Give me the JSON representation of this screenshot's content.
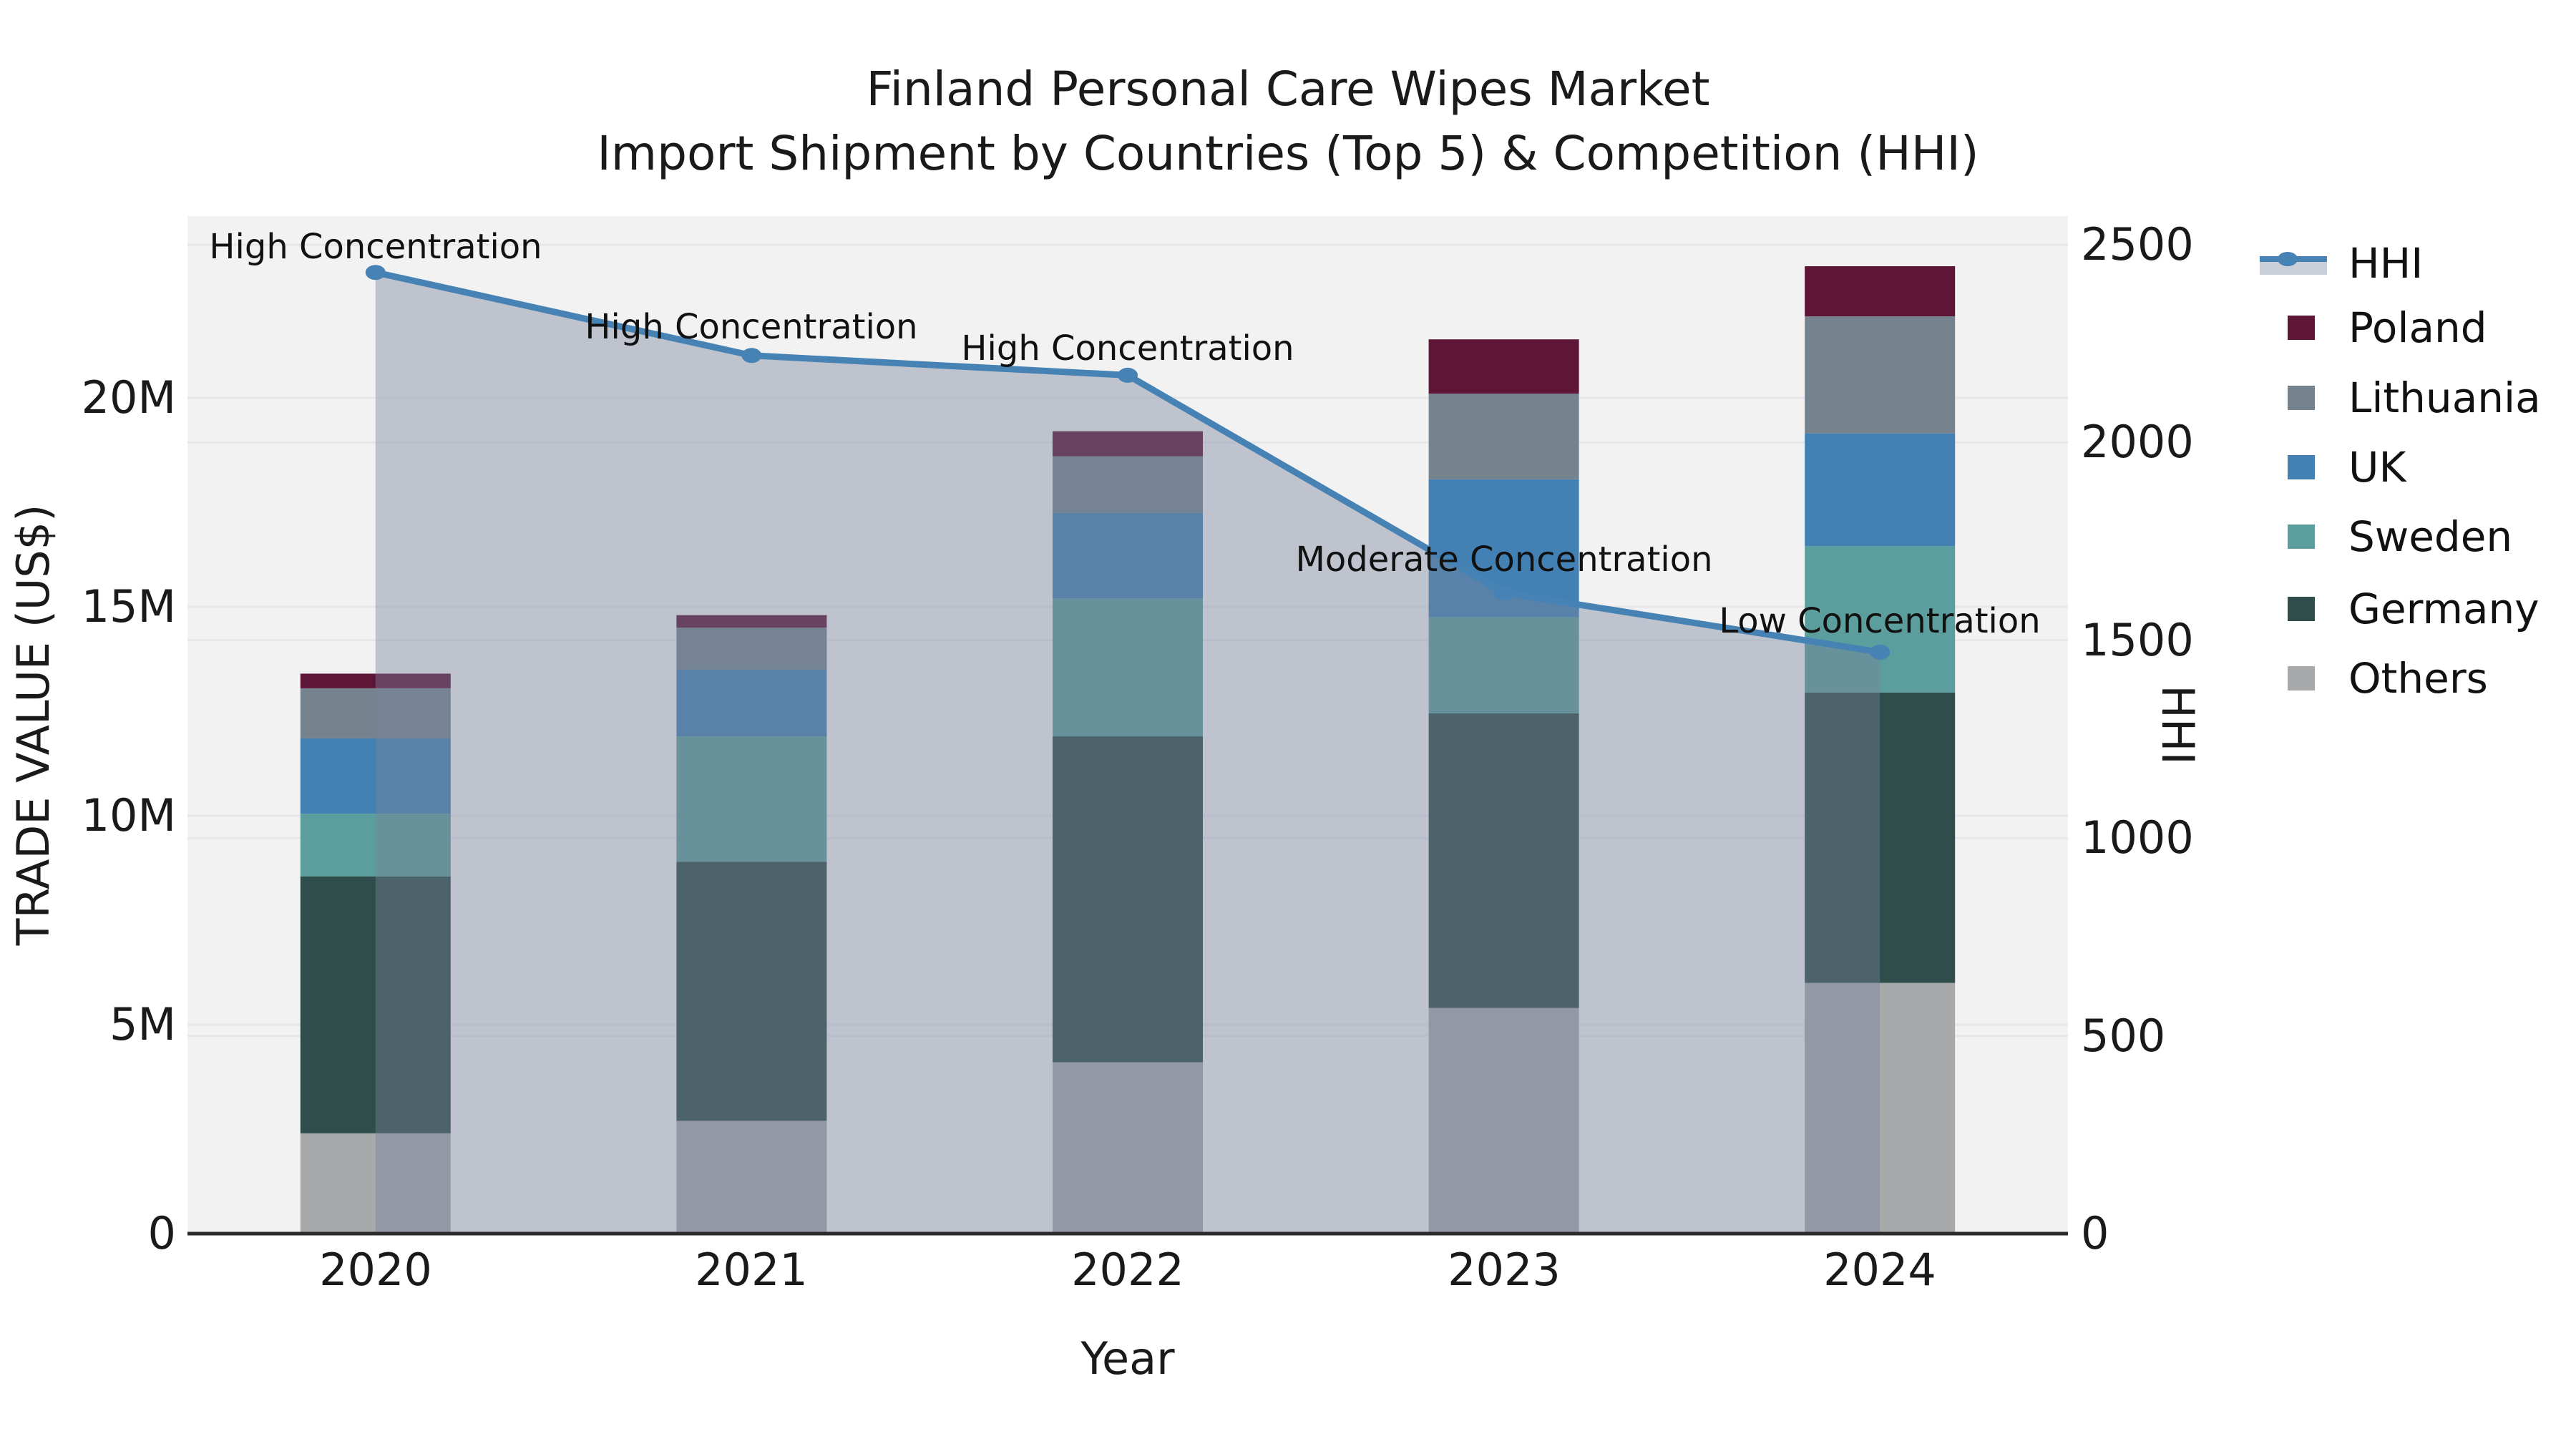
{
  "title": {
    "line1": "Finland Personal Care Wipes Market",
    "line2": "Import Shipment by Countries (Top 5) & Competition (HHI)"
  },
  "axes": {
    "x": {
      "label": "Year",
      "ticks": [
        "2020",
        "2021",
        "2022",
        "2023",
        "2024"
      ]
    },
    "y_left": {
      "label": "TRADE VALUE (US$)",
      "ticks": [
        "0",
        "5M",
        "10M",
        "15M",
        "20M"
      ]
    },
    "y_right": {
      "label": "HHI",
      "ticks": [
        "0",
        "500",
        "1000",
        "1500",
        "2000",
        "2500"
      ]
    }
  },
  "legend": {
    "items": [
      {
        "label": "HHI",
        "type": "line",
        "color": "#4682B4"
      },
      {
        "label": "Poland",
        "type": "patch",
        "color": "#5E1637"
      },
      {
        "label": "Lithuania",
        "type": "patch",
        "color": "#75838F"
      },
      {
        "label": "UK",
        "type": "patch",
        "color": "#4381B5"
      },
      {
        "label": "Sweden",
        "type": "patch",
        "color": "#5C9D9E"
      },
      {
        "label": "Germany",
        "type": "patch",
        "color": "#2F4D4B"
      },
      {
        "label": "Others",
        "type": "patch",
        "color": "#A7A9AB"
      }
    ]
  },
  "annotations": [
    {
      "year": "2020",
      "text": "High Concentration"
    },
    {
      "year": "2021",
      "text": "High Concentration"
    },
    {
      "year": "2022",
      "text": "High Concentration"
    },
    {
      "year": "2023",
      "text": "Moderate Concentration"
    },
    {
      "year": "2024",
      "text": "Low Concentration"
    }
  ],
  "colors": {
    "plot_background": "#F2F2F3",
    "gridline": "#E7E7EA",
    "axis_spine": "#2B2B2B",
    "hhi_line": "#4682B4",
    "hhi_area_fill": "rgba(118,132,155,0.42)",
    "text": "#1A1A1A"
  },
  "chart_data": {
    "type": "bar+line",
    "title": "Finland Personal Care Wipes Market — Import Shipment by Countries (Top 5) & Competition (HHI)",
    "categories": [
      "2020",
      "2021",
      "2022",
      "2023",
      "2024"
    ],
    "bar_unit": "million US$",
    "stack_order_bottom_to_top": [
      "Others",
      "Germany",
      "Sweden",
      "UK",
      "Lithuania",
      "Poland"
    ],
    "series": [
      {
        "name": "Others",
        "color": "#A7A9AB",
        "values": [
          2.4,
          2.7,
          4.1,
          5.4,
          6.0
        ]
      },
      {
        "name": "Germany",
        "color": "#2F4D4B",
        "values": [
          6.15,
          6.2,
          7.8,
          7.05,
          6.95
        ]
      },
      {
        "name": "Sweden",
        "color": "#5C9D9E",
        "values": [
          1.5,
          3.0,
          3.3,
          2.3,
          3.5
        ]
      },
      {
        "name": "UK",
        "color": "#4381B5",
        "values": [
          1.8,
          1.6,
          2.05,
          3.3,
          2.7
        ]
      },
      {
        "name": "Lithuania",
        "color": "#75838F",
        "values": [
          1.2,
          1.0,
          1.35,
          2.05,
          2.8
        ]
      },
      {
        "name": "Poland",
        "color": "#5E1637",
        "values": [
          0.35,
          0.3,
          0.6,
          1.3,
          1.2
        ]
      }
    ],
    "bar_totals": [
      13.4,
      14.8,
      19.2,
      21.4,
      23.15
    ],
    "line_series": {
      "name": "HHI",
      "axis": "right",
      "values": [
        2430,
        2220,
        2170,
        1620,
        1470
      ]
    },
    "xlabel": "Year",
    "ylabel_left": "TRADE VALUE (US$)",
    "ylabel_right": "HHI",
    "ylim_left_musd": [
      0,
      24.3
    ],
    "ylim_right": [
      0,
      2570
    ],
    "grid": "horizontal",
    "legend_position": "right",
    "annotations": [
      "High Concentration",
      "High Concentration",
      "High Concentration",
      "Moderate Concentration",
      "Low Concentration"
    ]
  }
}
